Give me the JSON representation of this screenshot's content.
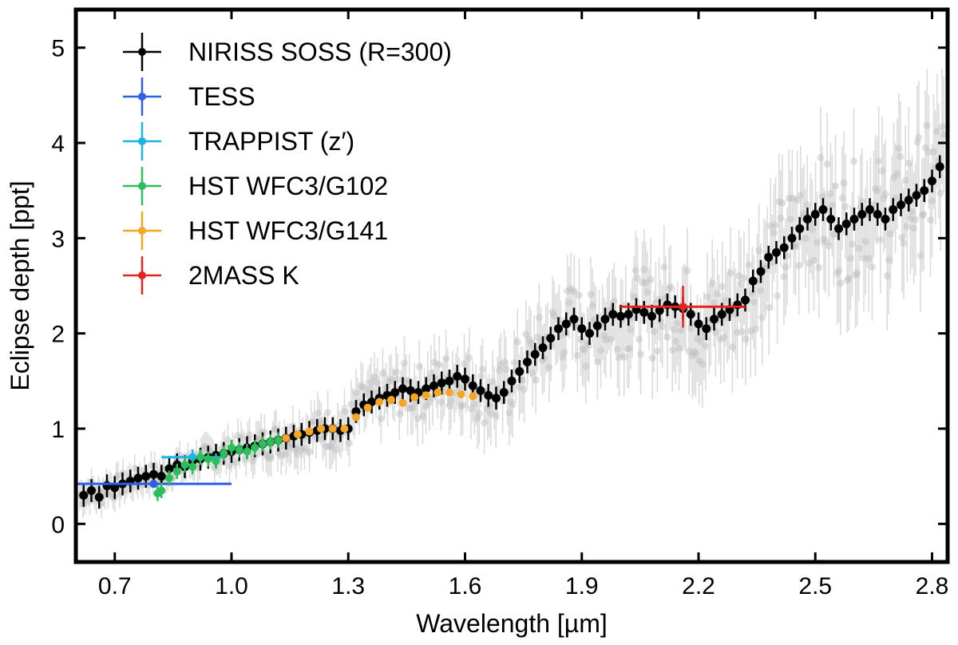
{
  "chart_data": {
    "type": "scatter",
    "title": "",
    "xlabel": "Wavelength [µm]",
    "ylabel": "Eclipse depth [ppt]",
    "xlim": [
      0.6,
      2.84
    ],
    "ylim": [
      -0.4,
      5.4
    ],
    "x_ticks": [
      0.7,
      1.0,
      1.3,
      1.6,
      1.9,
      2.2,
      2.5,
      2.8
    ],
    "x_tick_labels": [
      "0.7",
      "1.0",
      "1.3",
      "1.6",
      "1.9",
      "2.2",
      "2.5",
      "2.8"
    ],
    "y_ticks": [
      0,
      1,
      2,
      3,
      4,
      5
    ],
    "y_tick_labels": [
      "0",
      "1",
      "2",
      "3",
      "4",
      "5"
    ],
    "legend_position": "top-left",
    "native_resolution_color": "#bdbdbd",
    "series": [
      {
        "name": "NIRISS SOSS (R=300)",
        "color": "#000000",
        "marker": "circle",
        "x": [
          0.62,
          0.64,
          0.66,
          0.68,
          0.7,
          0.72,
          0.74,
          0.76,
          0.78,
          0.8,
          0.82,
          0.84,
          0.86,
          0.88,
          0.9,
          0.92,
          0.94,
          0.96,
          0.98,
          1.0,
          1.02,
          1.04,
          1.06,
          1.08,
          1.1,
          1.12,
          1.14,
          1.16,
          1.18,
          1.2,
          1.22,
          1.24,
          1.26,
          1.28,
          1.3,
          1.32,
          1.34,
          1.36,
          1.38,
          1.4,
          1.42,
          1.44,
          1.46,
          1.48,
          1.5,
          1.52,
          1.54,
          1.56,
          1.58,
          1.6,
          1.62,
          1.64,
          1.66,
          1.68,
          1.7,
          1.72,
          1.74,
          1.76,
          1.78,
          1.8,
          1.82,
          1.84,
          1.86,
          1.88,
          1.9,
          1.92,
          1.94,
          1.96,
          1.98,
          2.0,
          2.02,
          2.04,
          2.06,
          2.08,
          2.1,
          2.12,
          2.14,
          2.16,
          2.18,
          2.2,
          2.22,
          2.24,
          2.26,
          2.28,
          2.3,
          2.32,
          2.34,
          2.36,
          2.38,
          2.4,
          2.42,
          2.44,
          2.46,
          2.48,
          2.5,
          2.52,
          2.54,
          2.56,
          2.58,
          2.6,
          2.62,
          2.64,
          2.66,
          2.68,
          2.7,
          2.72,
          2.74,
          2.76,
          2.78,
          2.8,
          2.82
        ],
        "y": [
          0.3,
          0.35,
          0.28,
          0.4,
          0.38,
          0.42,
          0.45,
          0.48,
          0.5,
          0.52,
          0.5,
          0.58,
          0.62,
          0.6,
          0.66,
          0.68,
          0.7,
          0.72,
          0.74,
          0.76,
          0.78,
          0.8,
          0.82,
          0.84,
          0.86,
          0.88,
          0.9,
          0.92,
          0.94,
          0.96,
          0.98,
          1.0,
          1.0,
          0.98,
          1.0,
          1.18,
          1.25,
          1.28,
          1.32,
          1.35,
          1.38,
          1.42,
          1.4,
          1.38,
          1.42,
          1.45,
          1.48,
          1.5,
          1.55,
          1.52,
          1.45,
          1.4,
          1.35,
          1.32,
          1.38,
          1.5,
          1.6,
          1.7,
          1.78,
          1.85,
          1.95,
          2.05,
          2.1,
          2.15,
          2.05,
          2.0,
          2.08,
          2.15,
          2.2,
          2.18,
          2.2,
          2.25,
          2.22,
          2.18,
          2.24,
          2.3,
          2.28,
          2.26,
          2.2,
          2.1,
          2.05,
          2.15,
          2.2,
          2.25,
          2.3,
          2.35,
          2.55,
          2.65,
          2.8,
          2.85,
          2.9,
          3.0,
          3.1,
          3.2,
          3.25,
          3.3,
          3.2,
          3.1,
          3.15,
          3.2,
          3.25,
          3.3,
          3.25,
          3.2,
          3.3,
          3.35,
          3.4,
          3.45,
          3.5,
          3.6,
          3.75
        ],
        "y_err": 0.12
      },
      {
        "name": "TESS",
        "color": "#2f5fe0",
        "marker": "circle",
        "x": [
          0.8
        ],
        "y": [
          0.42
        ],
        "x_err": [
          [
            0.6,
            1.0
          ]
        ],
        "y_err": 0.04
      },
      {
        "name": "TRAPPIST (z′)",
        "color": "#1ab4e8",
        "marker": "circle",
        "x": [
          0.9
        ],
        "y": [
          0.7
        ],
        "x_err": [
          [
            0.82,
            0.98
          ]
        ],
        "y_err": 0.08
      },
      {
        "name": "HST WFC3/G102",
        "color": "#2bbf5a",
        "marker": "circle",
        "x": [
          0.81,
          0.82,
          0.84,
          0.86,
          0.88,
          0.9,
          0.92,
          0.94,
          0.96,
          0.98,
          1.0,
          1.02,
          1.04,
          1.06,
          1.08,
          1.1,
          1.12
        ],
        "y": [
          0.32,
          0.35,
          0.48,
          0.55,
          0.62,
          0.6,
          0.7,
          0.68,
          0.66,
          0.74,
          0.8,
          0.78,
          0.76,
          0.8,
          0.84,
          0.86,
          0.88
        ],
        "y_err": 0.08
      },
      {
        "name": "HST WFC3/G141",
        "color": "#f5a623",
        "marker": "circle",
        "x": [
          1.14,
          1.17,
          1.2,
          1.23,
          1.26,
          1.29,
          1.32,
          1.35,
          1.38,
          1.41,
          1.44,
          1.47,
          1.5,
          1.53,
          1.56,
          1.59,
          1.62
        ],
        "y": [
          0.9,
          0.94,
          0.97,
          1.0,
          1.0,
          1.0,
          1.12,
          1.22,
          1.28,
          1.3,
          1.27,
          1.33,
          1.35,
          1.38,
          1.38,
          1.36,
          1.34
        ],
        "y_err": 0.03
      },
      {
        "name": "2MASS K",
        "color": "#e8231a",
        "marker": "circle",
        "x": [
          2.16
        ],
        "y": [
          2.28
        ],
        "x_err": [
          [
            2.0,
            2.32
          ]
        ],
        "y_err": 0.22
      }
    ]
  }
}
